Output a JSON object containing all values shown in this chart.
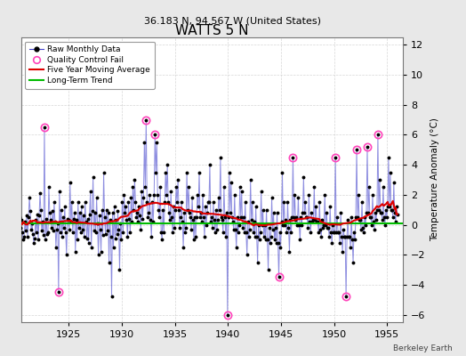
{
  "title": "WATTS 5 N",
  "subtitle": "36.183 N, 94.567 W (United States)",
  "credit": "Berkeley Earth",
  "ylabel": "Temperature Anomaly (°C)",
  "xlim": [
    1920.5,
    1956.5
  ],
  "ylim": [
    -6.5,
    12.5
  ],
  "yticks": [
    -6,
    -4,
    -2,
    0,
    2,
    4,
    6,
    8,
    10,
    12
  ],
  "xticks": [
    1925,
    1930,
    1935,
    1940,
    1945,
    1950,
    1955
  ],
  "background_color": "#e8e8e8",
  "plot_bg_color": "#ffffff",
  "grid_color": "#cccccc",
  "raw_line_color": "#4444cc",
  "raw_line_alpha": 0.6,
  "raw_dot_color": "#000000",
  "ma_color": "#dd0000",
  "trend_color": "#00bb00",
  "qc_color": "#ff44bb",
  "raw_data": [
    1920.042,
    0.4,
    1920.125,
    -0.3,
    1920.208,
    0.8,
    1920.292,
    1.2,
    1920.375,
    0.5,
    1920.458,
    -0.2,
    1920.542,
    0.3,
    1920.625,
    -0.5,
    1920.708,
    -1.0,
    1920.792,
    -0.8,
    1920.875,
    0.2,
    1920.958,
    -0.4,
    1921.042,
    0.6,
    1921.125,
    -0.8,
    1921.208,
    0.5,
    1921.292,
    1.8,
    1921.375,
    0.9,
    1921.458,
    -0.3,
    1921.542,
    0.1,
    1921.625,
    -0.6,
    1921.708,
    -1.2,
    1921.792,
    -0.9,
    1921.875,
    0.3,
    1921.958,
    -0.5,
    1922.042,
    0.7,
    1922.125,
    -1.0,
    1922.208,
    0.6,
    1922.292,
    2.1,
    1922.375,
    1.0,
    1922.458,
    -0.4,
    1922.542,
    0.2,
    1922.625,
    -0.7,
    1922.708,
    6.5,
    1922.792,
    -1.0,
    1922.875,
    0.4,
    1922.958,
    -0.6,
    1923.042,
    -0.5,
    1923.125,
    2.5,
    1923.208,
    0.8,
    1923.292,
    0.3,
    1923.375,
    -0.2,
    1923.458,
    0.9,
    1923.542,
    -0.4,
    1923.625,
    1.5,
    1923.708,
    0.2,
    1923.792,
    -1.5,
    1923.875,
    -0.3,
    1923.958,
    0.1,
    1924.042,
    -4.5,
    1924.125,
    2.2,
    1924.208,
    -0.5,
    1924.292,
    1.0,
    1924.375,
    -0.8,
    1924.458,
    0.5,
    1924.542,
    -0.2,
    1924.625,
    1.2,
    1924.708,
    -0.5,
    1924.792,
    -2.0,
    1924.875,
    0.4,
    1924.958,
    0.3,
    1925.042,
    -0.3,
    1925.125,
    2.8,
    1925.208,
    0.2,
    1925.292,
    1.5,
    1925.375,
    -0.5,
    1925.458,
    0.4,
    1925.542,
    0.8,
    1925.625,
    -1.8,
    1925.708,
    0.3,
    1925.792,
    -1.0,
    1925.875,
    1.5,
    1925.958,
    -0.2,
    1926.042,
    0.8,
    1926.125,
    -0.5,
    1926.208,
    1.2,
    1926.292,
    -0.3,
    1926.375,
    0.6,
    1926.458,
    -0.8,
    1926.542,
    1.5,
    1926.625,
    0.2,
    1926.708,
    -0.9,
    1926.792,
    0.4,
    1926.875,
    -1.2,
    1926.958,
    0.7,
    1927.042,
    2.2,
    1927.125,
    -1.5,
    1927.208,
    0.9,
    1927.292,
    3.2,
    1927.375,
    -0.4,
    1927.458,
    0.8,
    1927.542,
    -0.5,
    1927.625,
    1.8,
    1927.708,
    0.1,
    1927.792,
    -2.0,
    1927.875,
    0.6,
    1927.958,
    -0.3,
    1928.042,
    -1.8,
    1928.125,
    1.0,
    1928.208,
    -0.7,
    1928.292,
    3.5,
    1928.375,
    0.5,
    1928.458,
    -0.6,
    1928.542,
    1.0,
    1928.625,
    -0.4,
    1928.708,
    0.8,
    1928.792,
    -2.5,
    1928.875,
    0.3,
    1928.958,
    -0.8,
    1929.042,
    -4.8,
    1929.125,
    0.8,
    1929.208,
    -1.5,
    1929.292,
    1.2,
    1929.375,
    -0.9,
    1929.458,
    0.3,
    1929.542,
    -0.6,
    1929.625,
    0.9,
    1929.708,
    -0.3,
    1929.792,
    -3.0,
    1929.875,
    0.1,
    1929.958,
    -1.0,
    1930.042,
    1.5,
    1930.125,
    -0.5,
    1930.208,
    2.0,
    1930.292,
    0.8,
    1930.375,
    1.2,
    1930.458,
    0.3,
    1930.542,
    -0.8,
    1930.625,
    1.5,
    1930.708,
    0.4,
    1930.792,
    -0.5,
    1930.875,
    1.8,
    1930.958,
    0.2,
    1931.042,
    2.5,
    1931.125,
    1.0,
    1931.208,
    3.0,
    1931.292,
    1.5,
    1931.375,
    0.5,
    1931.458,
    0.8,
    1931.542,
    0.2,
    1931.625,
    1.2,
    1931.708,
    0.6,
    1931.792,
    -0.3,
    1931.875,
    2.2,
    1931.958,
    0.4,
    1932.042,
    1.8,
    1932.125,
    5.5,
    1932.208,
    2.5,
    1932.292,
    7.0,
    1932.375,
    1.5,
    1932.458,
    0.5,
    1932.542,
    0.8,
    1932.625,
    2.0,
    1932.708,
    0.3,
    1932.792,
    -0.8,
    1932.875,
    1.5,
    1932.958,
    0.2,
    1933.042,
    2.0,
    1933.125,
    6.0,
    1933.208,
    3.5,
    1933.292,
    5.5,
    1933.375,
    2.0,
    1933.458,
    1.0,
    1933.542,
    0.5,
    1933.625,
    2.5,
    1933.708,
    -0.5,
    1933.792,
    -1.0,
    1933.875,
    1.0,
    1933.958,
    -0.5,
    1934.042,
    1.5,
    1934.125,
    3.5,
    1934.208,
    2.0,
    1934.292,
    4.0,
    1934.375,
    1.5,
    1934.458,
    0.8,
    1934.542,
    0.3,
    1934.625,
    2.2,
    1934.708,
    0.5,
    1934.792,
    -0.5,
    1934.875,
    1.2,
    1934.958,
    -0.2,
    1935.042,
    1.0,
    1935.125,
    2.5,
    1935.208,
    1.5,
    1935.292,
    3.0,
    1935.375,
    1.0,
    1935.458,
    -0.2,
    1935.542,
    0.5,
    1935.625,
    1.5,
    1935.708,
    0.2,
    1935.792,
    -1.5,
    1935.875,
    0.8,
    1935.958,
    -0.5,
    1936.042,
    -0.2,
    1936.125,
    3.5,
    1936.208,
    1.0,
    1936.292,
    2.5,
    1936.375,
    0.8,
    1936.458,
    0.5,
    1936.542,
    -0.3,
    1936.625,
    1.8,
    1936.708,
    0.3,
    1936.792,
    -1.0,
    1936.875,
    0.5,
    1936.958,
    -0.8,
    1937.042,
    0.5,
    1937.125,
    2.0,
    1937.208,
    1.2,
    1937.292,
    3.5,
    1937.375,
    0.5,
    1937.458,
    0.8,
    1937.542,
    0.2,
    1937.625,
    2.0,
    1937.708,
    0.5,
    1937.792,
    -0.8,
    1937.875,
    1.2,
    1937.958,
    0.0,
    1938.042,
    0.8,
    1938.125,
    1.5,
    1938.208,
    1.5,
    1938.292,
    4.0,
    1938.375,
    0.2,
    1938.458,
    0.5,
    1938.542,
    -0.2,
    1938.625,
    1.5,
    1938.708,
    0.3,
    1938.792,
    -0.5,
    1938.875,
    1.0,
    1938.958,
    -0.3,
    1939.042,
    0.3,
    1939.125,
    1.8,
    1939.208,
    1.0,
    1939.292,
    4.5,
    1939.375,
    0.5,
    1939.458,
    0.3,
    1939.542,
    -0.5,
    1939.625,
    2.5,
    1939.708,
    0.5,
    1939.792,
    -0.8,
    1939.875,
    0.8,
    1939.958,
    -6.0,
    1940.042,
    0.5,
    1940.125,
    3.5,
    1940.208,
    0.8,
    1940.292,
    2.8,
    1940.375,
    0.5,
    1940.458,
    0.2,
    1940.542,
    -0.3,
    1940.625,
    2.0,
    1940.708,
    -0.3,
    1940.792,
    -1.5,
    1940.875,
    0.5,
    1940.958,
    -0.5,
    1941.042,
    0.0,
    1941.125,
    2.5,
    1941.208,
    0.5,
    1941.292,
    2.2,
    1941.375,
    -0.2,
    1941.458,
    0.5,
    1941.542,
    -0.5,
    1941.625,
    1.5,
    1941.708,
    -0.5,
    1941.792,
    -2.0,
    1941.875,
    0.2,
    1941.958,
    -0.8,
    1942.042,
    -0.3,
    1942.125,
    3.0,
    1942.208,
    0.3,
    1942.292,
    1.5,
    1942.375,
    -0.5,
    1942.458,
    0.2,
    1942.542,
    -0.8,
    1942.625,
    1.2,
    1942.708,
    -0.8,
    1942.792,
    -2.5,
    1942.875,
    0.0,
    1942.958,
    -1.0,
    1943.042,
    -0.5,
    1943.125,
    2.2,
    1943.208,
    0.0,
    1943.292,
    1.0,
    1943.375,
    -0.8,
    1943.458,
    0.0,
    1943.542,
    -1.0,
    1943.625,
    1.0,
    1943.708,
    -1.0,
    1943.792,
    -3.0,
    1943.875,
    -0.2,
    1943.958,
    -1.2,
    1944.042,
    -0.8,
    1944.125,
    1.8,
    1944.208,
    -0.3,
    1944.292,
    0.8,
    1944.375,
    -1.0,
    1944.458,
    -0.2,
    1944.542,
    -1.2,
    1944.625,
    0.8,
    1944.708,
    -1.2,
    1944.792,
    -3.5,
    1944.875,
    -0.5,
    1944.958,
    -1.5,
    1945.042,
    0.2,
    1945.125,
    3.5,
    1945.208,
    0.0,
    1945.292,
    1.5,
    1945.375,
    0.0,
    1945.458,
    0.3,
    1945.542,
    -0.5,
    1945.625,
    1.5,
    1945.708,
    -0.2,
    1945.792,
    -1.8,
    1945.875,
    0.3,
    1945.958,
    -0.5,
    1946.042,
    0.5,
    1946.125,
    4.5,
    1946.208,
    0.5,
    1946.292,
    2.0,
    1946.375,
    0.3,
    1946.458,
    0.5,
    1946.542,
    0.0,
    1946.625,
    1.8,
    1946.708,
    0.0,
    1946.792,
    -1.0,
    1946.875,
    0.5,
    1946.958,
    0.0,
    1947.042,
    0.8,
    1947.125,
    3.2,
    1947.208,
    0.8,
    1947.292,
    1.5,
    1947.375,
    0.5,
    1947.458,
    0.5,
    1947.542,
    -0.2,
    1947.625,
    2.0,
    1947.708,
    0.2,
    1947.792,
    -0.5,
    1947.875,
    0.8,
    1947.958,
    0.2,
    1948.042,
    0.3,
    1948.125,
    2.5,
    1948.208,
    0.3,
    1948.292,
    1.2,
    1948.375,
    0.2,
    1948.458,
    0.2,
    1948.542,
    -0.5,
    1948.625,
    1.5,
    1948.708,
    -0.3,
    1948.792,
    -0.8,
    1948.875,
    0.3,
    1948.958,
    -0.2,
    1949.042,
    0.0,
    1949.125,
    2.0,
    1949.208,
    0.0,
    1949.292,
    0.8,
    1949.375,
    -0.2,
    1949.458,
    -0.2,
    1949.542,
    -0.8,
    1949.625,
    1.2,
    1949.708,
    -0.5,
    1949.792,
    -1.2,
    1949.875,
    0.0,
    1949.958,
    -0.5,
    1950.042,
    -0.5,
    1950.125,
    4.5,
    1950.208,
    -0.5,
    1950.292,
    0.5,
    1950.375,
    -0.5,
    1950.458,
    -0.5,
    1950.542,
    -1.2,
    1950.625,
    0.8,
    1950.708,
    -0.8,
    1950.792,
    -1.8,
    1950.875,
    -0.3,
    1950.958,
    -0.8,
    1951.042,
    -0.8,
    1951.125,
    -4.8,
    1951.208,
    -0.8,
    1951.292,
    0.3,
    1951.375,
    -0.8,
    1951.458,
    -0.8,
    1951.542,
    -1.5,
    1951.625,
    0.5,
    1951.708,
    -1.0,
    1951.792,
    -2.5,
    1951.875,
    -0.5,
    1951.958,
    -1.0,
    1952.042,
    0.5,
    1952.125,
    5.0,
    1952.208,
    0.5,
    1952.292,
    2.0,
    1952.375,
    0.3,
    1952.458,
    0.3,
    1952.542,
    -0.3,
    1952.625,
    1.5,
    1952.708,
    -0.2,
    1952.792,
    -0.5,
    1952.875,
    0.5,
    1952.958,
    0.0,
    1953.042,
    0.8,
    1953.125,
    5.2,
    1953.208,
    0.8,
    1953.292,
    2.5,
    1953.375,
    0.5,
    1953.458,
    0.5,
    1953.542,
    0.0,
    1953.625,
    2.0,
    1953.708,
    0.2,
    1953.792,
    -0.3,
    1953.875,
    0.8,
    1953.958,
    0.3,
    1954.042,
    1.0,
    1954.125,
    6.0,
    1954.208,
    1.0,
    1954.292,
    3.0,
    1954.375,
    0.8,
    1954.458,
    0.8,
    1954.542,
    0.3,
    1954.625,
    2.5,
    1954.708,
    0.5,
    1954.792,
    0.0,
    1954.875,
    1.0,
    1954.958,
    0.5,
    1955.042,
    1.2,
    1955.125,
    4.5,
    1955.208,
    1.2,
    1955.292,
    3.5,
    1955.375,
    1.0,
    1955.458,
    1.0,
    1955.542,
    0.5,
    1955.625,
    2.8,
    1955.708,
    0.8,
    1955.792,
    0.2,
    1955.875,
    1.2,
    1955.958,
    0.7
  ],
  "qc_fails": [
    [
      1922.708,
      6.5
    ],
    [
      1924.042,
      -4.5
    ],
    [
      1932.292,
      7.0
    ],
    [
      1933.125,
      6.0
    ],
    [
      1939.958,
      -6.0
    ],
    [
      1944.792,
      -3.5
    ],
    [
      1946.125,
      4.5
    ],
    [
      1950.125,
      4.5
    ],
    [
      1951.125,
      -4.8
    ],
    [
      1952.125,
      5.0
    ],
    [
      1953.125,
      5.2
    ],
    [
      1954.125,
      6.0
    ]
  ],
  "trend_x": [
    1920.5,
    1956.5
  ],
  "trend_y": [
    0.1,
    0.1
  ]
}
